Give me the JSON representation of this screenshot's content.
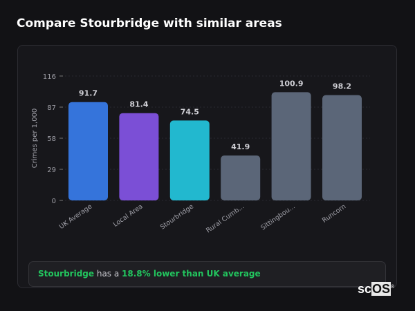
{
  "title": "Compare Stourbridge with similar areas",
  "chart_data": {
    "type": "bar",
    "title": "",
    "xlabel": "",
    "ylabel": "Crimes per 1,000",
    "ylim": [
      0,
      116
    ],
    "yticks": [
      0,
      29,
      58,
      87,
      116
    ],
    "grid": true,
    "categories": [
      "UK Average",
      "Local Area",
      "Stourbridge",
      "Rural Cumb...",
      "Sittingbou...",
      "Runcorn"
    ],
    "values": [
      91.7,
      81.4,
      74.5,
      41.9,
      100.9,
      98.2
    ],
    "data_labels": [
      "91.7",
      "81.4",
      "74.5",
      "41.9",
      "100.9",
      "98.2"
    ],
    "colors": [
      "#3574db",
      "#7b4fd6",
      "#22b8cf",
      "#5b6678",
      "#5b6678",
      "#5b6678"
    ]
  },
  "summary": {
    "area": "Stourbridge",
    "middle": " has a ",
    "highlight": "18.8% lower than UK average"
  },
  "logo": {
    "text": "scOS",
    "mark": "®"
  }
}
